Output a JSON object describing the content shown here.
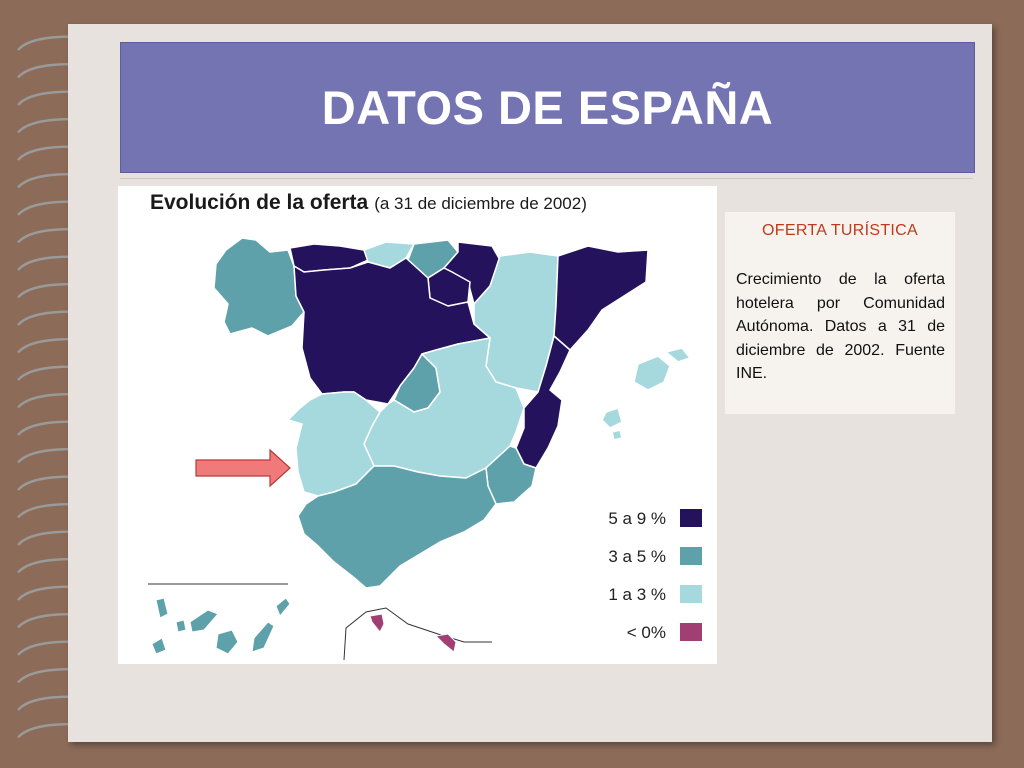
{
  "slide": {
    "title": "DATOS DE ESPAÑA"
  },
  "map": {
    "title": "Evolución de la oferta",
    "subtitle": "(a 31 de diciembre de 2002)",
    "legend": [
      {
        "label": "5 a 9 %",
        "color": "#24135c"
      },
      {
        "label": "3 a 5 %",
        "color": "#5fa1ab"
      },
      {
        "label": "1 a 3 %",
        "color": "#a6d9de"
      },
      {
        "label": "< 0%",
        "color": "#a13f74"
      }
    ],
    "highlighted_region": "Extremadura",
    "regions": [
      {
        "name": "Galicia",
        "category": "3 a 5 %"
      },
      {
        "name": "Asturias",
        "category": "5 a 9 %"
      },
      {
        "name": "Cantabria",
        "category": "1 a 3 %"
      },
      {
        "name": "País Vasco",
        "category": "3 a 5 %"
      },
      {
        "name": "Navarra",
        "category": "5 a 9 %"
      },
      {
        "name": "La Rioja",
        "category": "5 a 9 %"
      },
      {
        "name": "Aragón",
        "category": "1 a 3 %"
      },
      {
        "name": "Cataluña",
        "category": "5 a 9 %"
      },
      {
        "name": "Castilla y León",
        "category": "5 a 9 %"
      },
      {
        "name": "Madrid",
        "category": "3 a 5 %"
      },
      {
        "name": "Castilla-La Mancha",
        "category": "1 a 3 %"
      },
      {
        "name": "Extremadura",
        "category": "1 a 3 %"
      },
      {
        "name": "Comunidad Valenciana",
        "category": "5 a 9 %"
      },
      {
        "name": "Murcia",
        "category": "3 a 5 %"
      },
      {
        "name": "Andalucía",
        "category": "3 a 5 %"
      },
      {
        "name": "Baleares",
        "category": "1 a 3 %"
      },
      {
        "name": "Canarias",
        "category": "3 a 5 %"
      },
      {
        "name": "Ceuta y Melilla",
        "category": "< 0%"
      }
    ]
  },
  "info": {
    "heading": "OFERTA TURÍSTICA",
    "text": "Crecimiento de la oferta hotelera por Comunidad Autónoma. Datos a 31 de diciembre de 2002. Fuente INE."
  }
}
